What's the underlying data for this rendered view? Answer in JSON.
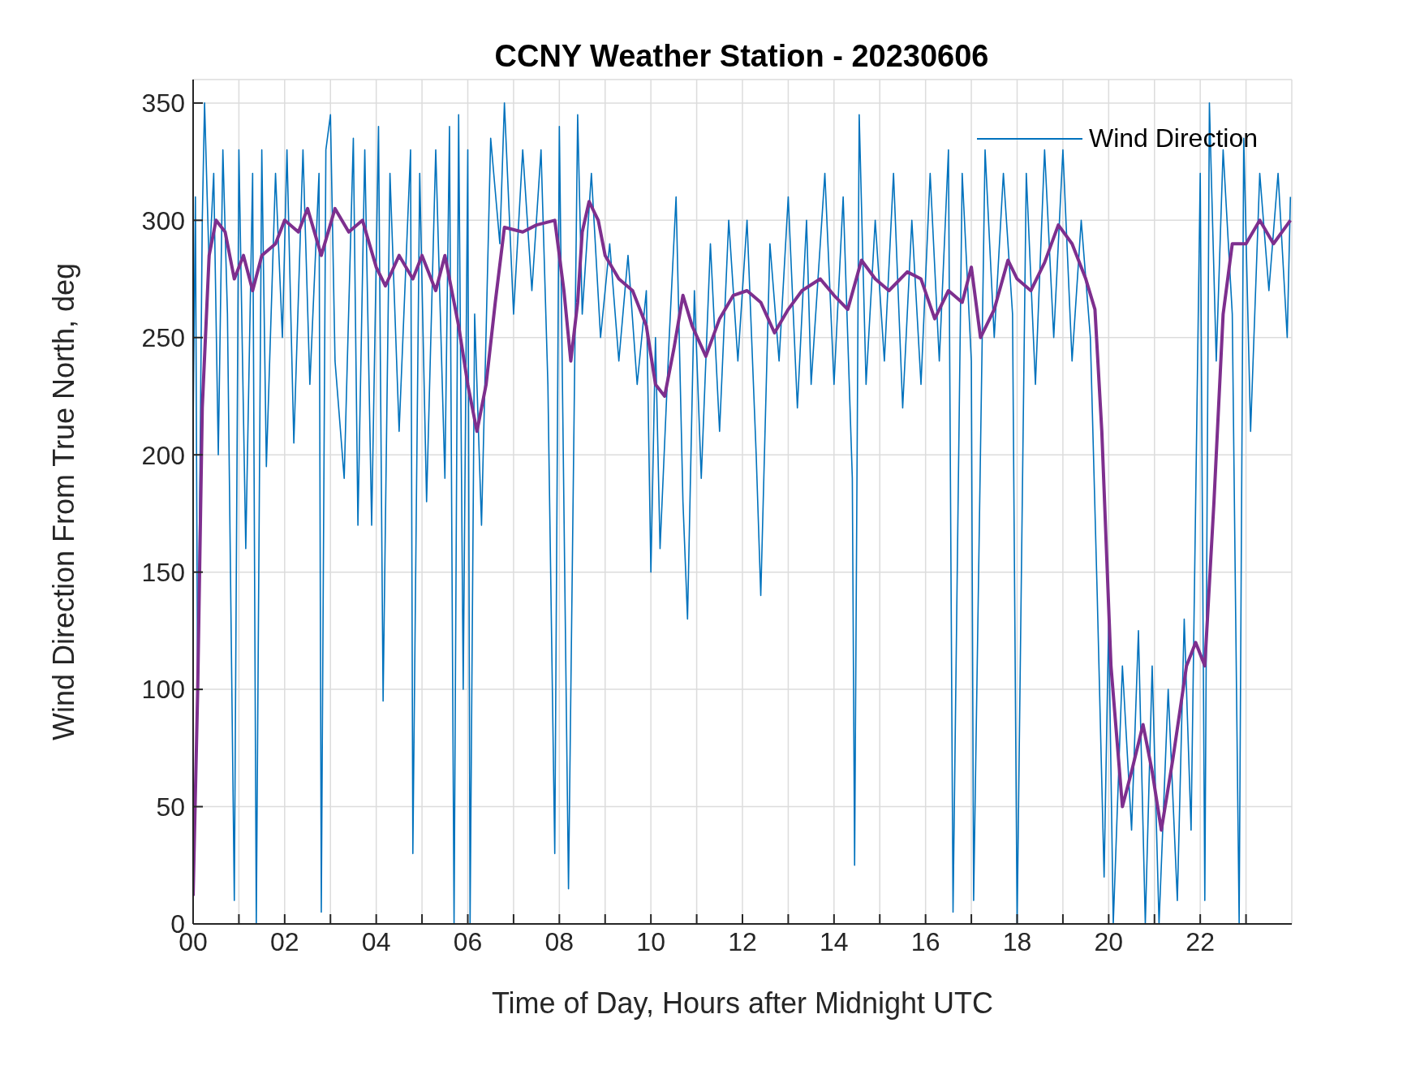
{
  "chart_data": {
    "type": "line",
    "title": "CCNY Weather Station - 20230606",
    "xlabel": "Time of Day, Hours after Midnight UTC",
    "ylabel": "Wind Direction From True North, deg",
    "xlim": [
      0,
      24
    ],
    "xticks": [
      {
        "value": 0,
        "label": "00"
      },
      {
        "value": 1,
        "label": null
      },
      {
        "value": 2,
        "label": "02"
      },
      {
        "value": 3,
        "label": null
      },
      {
        "value": 4,
        "label": "04"
      },
      {
        "value": 5,
        "label": null
      },
      {
        "value": 6,
        "label": "06"
      },
      {
        "value": 7,
        "label": null
      },
      {
        "value": 8,
        "label": "08"
      },
      {
        "value": 9,
        "label": null
      },
      {
        "value": 10,
        "label": "10"
      },
      {
        "value": 11,
        "label": null
      },
      {
        "value": 12,
        "label": "12"
      },
      {
        "value": 13,
        "label": null
      },
      {
        "value": 14,
        "label": "14"
      },
      {
        "value": 15,
        "label": null
      },
      {
        "value": 16,
        "label": "16"
      },
      {
        "value": 17,
        "label": null
      },
      {
        "value": 18,
        "label": "18"
      },
      {
        "value": 19,
        "label": null
      },
      {
        "value": 20,
        "label": "20"
      },
      {
        "value": 21,
        "label": null
      },
      {
        "value": 22,
        "label": "22"
      },
      {
        "value": 23,
        "label": null
      }
    ],
    "ylim": [
      0,
      360
    ],
    "yticks": [
      0,
      50,
      100,
      150,
      200,
      250,
      300,
      350
    ],
    "grid": true,
    "legend": "top right",
    "series": [
      {
        "name": "Wind Direction",
        "color": "#0072bd",
        "x": [
          0,
          0.05,
          0.1,
          0.2,
          0.25,
          0.35,
          0.45,
          0.55,
          0.65,
          0.75,
          0.9,
          1.0,
          1.15,
          1.3,
          1.38,
          1.5,
          1.6,
          1.8,
          1.95,
          2.05,
          2.2,
          2.4,
          2.55,
          2.75,
          2.8,
          2.9,
          3.0,
          3.1,
          3.3,
          3.5,
          3.6,
          3.75,
          3.9,
          4.05,
          4.15,
          4.3,
          4.5,
          4.75,
          4.8,
          4.95,
          5.1,
          5.3,
          5.5,
          5.6,
          5.7,
          5.8,
          5.9,
          6.0,
          6.05,
          6.15,
          6.3,
          6.5,
          6.7,
          6.8,
          7.0,
          7.2,
          7.4,
          7.6,
          7.75,
          7.9,
          8.0,
          8.2,
          8.4,
          8.5,
          8.7,
          8.9,
          9.1,
          9.3,
          9.5,
          9.7,
          9.9,
          10.0,
          10.1,
          10.2,
          10.4,
          10.55,
          10.7,
          10.8,
          10.95,
          11.1,
          11.3,
          11.5,
          11.7,
          11.9,
          12.1,
          12.3,
          12.4,
          12.6,
          12.8,
          13.0,
          13.2,
          13.4,
          13.5,
          13.8,
          14.0,
          14.2,
          14.4,
          14.45,
          14.55,
          14.7,
          14.9,
          15.1,
          15.3,
          15.5,
          15.7,
          15.9,
          16.1,
          16.3,
          16.5,
          16.6,
          16.8,
          17.0,
          17.05,
          17.3,
          17.5,
          17.7,
          17.9,
          18.0,
          18.2,
          18.4,
          18.6,
          18.8,
          19.0,
          19.2,
          19.4,
          19.6,
          19.75,
          19.9,
          20.0,
          20.1,
          20.3,
          20.5,
          20.65,
          20.8,
          20.95,
          21.1,
          21.3,
          21.5,
          21.65,
          21.8,
          22.0,
          22.1,
          22.2,
          22.35,
          22.5,
          22.7,
          22.85,
          22.95,
          23.1,
          23.3,
          23.5,
          23.7,
          23.9,
          23.97
        ],
        "values": [
          210,
          310,
          90,
          300,
          350,
          280,
          320,
          200,
          330,
          260,
          10,
          330,
          160,
          320,
          0,
          330,
          195,
          320,
          250,
          330,
          205,
          330,
          230,
          320,
          5,
          330,
          345,
          240,
          190,
          335,
          170,
          330,
          170,
          340,
          95,
          320,
          210,
          330,
          30,
          320,
          180,
          330,
          190,
          340,
          0,
          345,
          100,
          330,
          0,
          260,
          170,
          335,
          290,
          350,
          260,
          330,
          270,
          330,
          230,
          30,
          340,
          15,
          345,
          260,
          320,
          250,
          290,
          240,
          285,
          230,
          270,
          150,
          250,
          160,
          250,
          310,
          180,
          130,
          270,
          190,
          290,
          210,
          300,
          240,
          300,
          200,
          140,
          290,
          240,
          310,
          220,
          300,
          230,
          320,
          230,
          310,
          190,
          25,
          345,
          230,
          300,
          240,
          320,
          220,
          300,
          230,
          320,
          240,
          330,
          5,
          320,
          240,
          10,
          330,
          250,
          320,
          260,
          0,
          320,
          230,
          330,
          250,
          330,
          240,
          300,
          250,
          140,
          20,
          130,
          0,
          110,
          40,
          125,
          0,
          110,
          0,
          100,
          10,
          130,
          40,
          320,
          10,
          350,
          240,
          330,
          260,
          0,
          335,
          210,
          320,
          270,
          320,
          250,
          310
        ]
      },
      {
        "color": "#7e2f8e",
        "x": [
          0,
          0.1,
          0.2,
          0.35,
          0.5,
          0.7,
          0.9,
          1.1,
          1.3,
          1.5,
          1.8,
          2.0,
          2.3,
          2.5,
          2.8,
          3.1,
          3.4,
          3.7,
          4.0,
          4.2,
          4.5,
          4.8,
          5.0,
          5.3,
          5.5,
          5.8,
          6.0,
          6.2,
          6.4,
          6.6,
          6.8,
          7.2,
          7.5,
          7.9,
          8.1,
          8.25,
          8.4,
          8.5,
          8.65,
          8.85,
          9.0,
          9.3,
          9.6,
          9.9,
          10.1,
          10.3,
          10.5,
          10.7,
          10.9,
          11.2,
          11.5,
          11.8,
          12.1,
          12.4,
          12.7,
          13.0,
          13.3,
          13.7,
          14.0,
          14.3,
          14.6,
          14.9,
          15.2,
          15.6,
          15.9,
          16.2,
          16.5,
          16.8,
          17.0,
          17.2,
          17.5,
          17.8,
          18.0,
          18.3,
          18.6,
          18.9,
          19.2,
          19.5,
          19.7,
          19.85,
          20.05,
          20.3,
          20.5,
          20.75,
          20.95,
          21.15,
          21.4,
          21.7,
          21.9,
          22.1,
          22.3,
          22.5,
          22.7,
          23.0,
          23.3,
          23.6,
          23.97
        ],
        "values": [
          12,
          100,
          220,
          285,
          300,
          295,
          275,
          285,
          270,
          285,
          290,
          300,
          295,
          305,
          285,
          305,
          295,
          300,
          280,
          272,
          285,
          275,
          285,
          270,
          285,
          255,
          230,
          210,
          230,
          265,
          297,
          295,
          298,
          300,
          270,
          240,
          265,
          295,
          308,
          300,
          285,
          275,
          270,
          255,
          230,
          225,
          245,
          268,
          255,
          242,
          258,
          268,
          270,
          265,
          252,
          262,
          270,
          275,
          268,
          262,
          283,
          275,
          270,
          278,
          275,
          258,
          270,
          265,
          280,
          250,
          262,
          283,
          275,
          270,
          282,
          298,
          290,
          275,
          262,
          210,
          110,
          50,
          65,
          85,
          65,
          40,
          70,
          110,
          120,
          110,
          180,
          260,
          290,
          290,
          300,
          290,
          300
        ]
      }
    ]
  }
}
